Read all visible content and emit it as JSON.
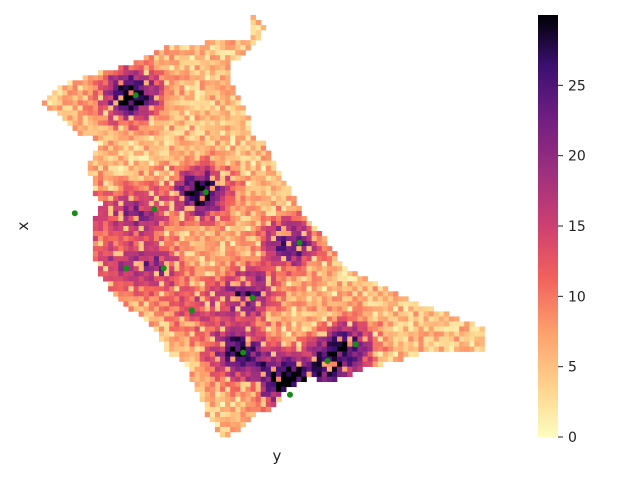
{
  "chart_data": {
    "type": "heatmap",
    "title": "",
    "xlabel": "y",
    "ylabel": "x",
    "colormap": "magma_r",
    "colorbar": {
      "vmin": 0,
      "vmax": 30,
      "ticks": [
        0,
        5,
        10,
        15,
        20,
        25
      ],
      "tick_labels": [
        "0",
        "5",
        "10",
        "15",
        "20",
        "25"
      ]
    },
    "x_ticks_shown": false,
    "y_ticks_shown": false,
    "hotspots": [
      {
        "x": 0.19,
        "y": 0.81,
        "value": 26
      },
      {
        "x": 0.06,
        "y": 0.53,
        "value": 22
      },
      {
        "x": 0.2,
        "y": 0.53,
        "value": 15
      },
      {
        "x": 0.34,
        "y": 0.58,
        "value": 24
      },
      {
        "x": 0.53,
        "y": 0.46,
        "value": 20
      },
      {
        "x": 0.24,
        "y": 0.4,
        "value": 14
      },
      {
        "x": 0.14,
        "y": 0.4,
        "value": 10
      },
      {
        "x": 0.44,
        "y": 0.34,
        "value": 18
      },
      {
        "x": 0.33,
        "y": 0.3,
        "value": 9
      },
      {
        "x": 0.42,
        "y": 0.2,
        "value": 22
      },
      {
        "x": 0.52,
        "y": 0.13,
        "value": 27
      },
      {
        "x": 0.65,
        "y": 0.22,
        "value": 19
      },
      {
        "x": 0.61,
        "y": 0.16,
        "value": 14
      }
    ],
    "markers": [
      {
        "x": 0.2,
        "y": 0.81,
        "color": "#1a8a1a"
      },
      {
        "x": 0.07,
        "y": 0.53,
        "color": "#1a8a1a"
      },
      {
        "x": 0.24,
        "y": 0.54,
        "color": "#1a8a1a"
      },
      {
        "x": 0.35,
        "y": 0.58,
        "color": "#1a8a1a"
      },
      {
        "x": 0.55,
        "y": 0.46,
        "color": "#1a8a1a"
      },
      {
        "x": 0.18,
        "y": 0.4,
        "color": "#1a8a1a"
      },
      {
        "x": 0.26,
        "y": 0.4,
        "color": "#1a8a1a"
      },
      {
        "x": 0.45,
        "y": 0.33,
        "color": "#1a8a1a"
      },
      {
        "x": 0.32,
        "y": 0.3,
        "color": "#1a8a1a"
      },
      {
        "x": 0.43,
        "y": 0.2,
        "color": "#1a8a1a"
      },
      {
        "x": 0.53,
        "y": 0.1,
        "color": "#1a8a1a"
      },
      {
        "x": 0.67,
        "y": 0.22,
        "color": "#1a8a1a"
      },
      {
        "x": 0.61,
        "y": 0.18,
        "color": "#1a8a1a"
      }
    ]
  }
}
